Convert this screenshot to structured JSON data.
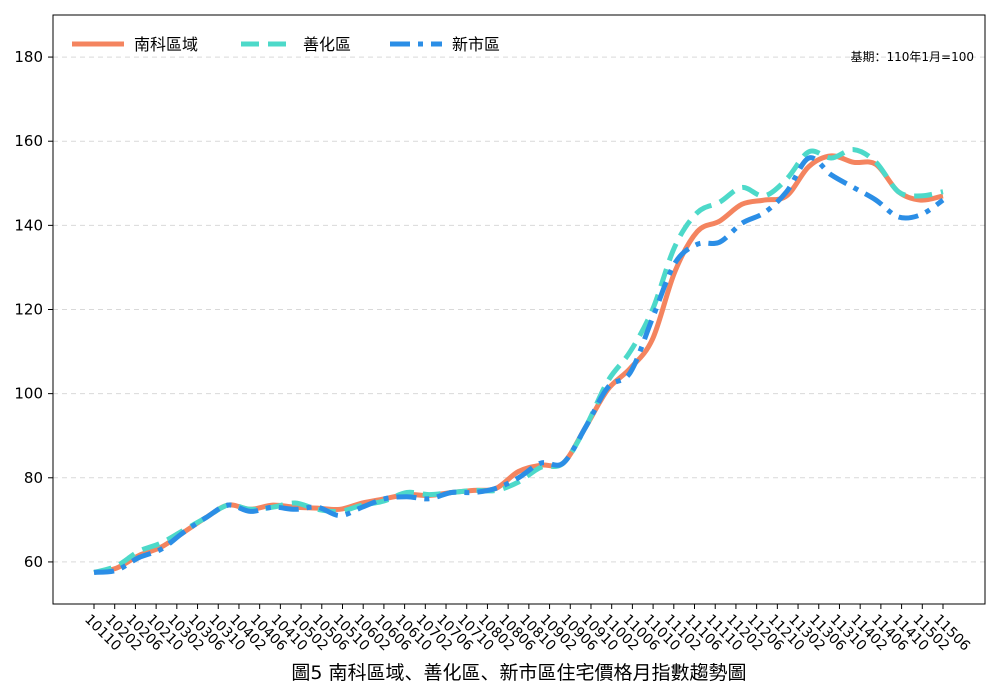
{
  "chart_data": {
    "type": "line",
    "title": "",
    "caption": "圖5 南科區域、善化區、新市區住宅價格月指數趨勢圖",
    "note": "基期：110年1月=100",
    "xlabel": "",
    "ylabel": "",
    "ylim": [
      50,
      190
    ],
    "yticks": [
      60,
      80,
      100,
      120,
      140,
      160,
      180
    ],
    "grid": "horizontal-dashed",
    "legend_position": "top-left",
    "x_tick_labels": [
      "10110",
      "10202",
      "10206",
      "10210",
      "10302",
      "10306",
      "10310",
      "10402",
      "10406",
      "10410",
      "10502",
      "10506",
      "10510",
      "10602",
      "10606",
      "10610",
      "10702",
      "10706",
      "10710",
      "10802",
      "10806",
      "10810",
      "10902",
      "10906",
      "10910",
      "11002",
      "11006",
      "11010",
      "11102",
      "11106",
      "11110",
      "11202",
      "11206",
      "11210",
      "11302",
      "11306",
      "11310",
      "11402",
      "11406",
      "11410",
      "11502",
      "11506"
    ],
    "series": [
      {
        "name": "南科區域",
        "color": "#F4845F",
        "dash": "solid",
        "values": [
          57.5,
          58.5,
          61.5,
          63.5,
          67,
          70.5,
          73.5,
          72.5,
          73.5,
          73,
          72.8,
          72.5,
          74,
          75,
          76,
          75.8,
          76.5,
          77,
          77.5,
          81.5,
          83,
          83.5,
          92,
          101,
          106,
          113,
          129,
          138.5,
          141,
          145,
          146,
          147,
          154,
          156.5,
          155,
          154.5,
          148,
          146,
          147
        ]
      },
      {
        "name": "善化區",
        "color": "#4DD9C9",
        "dash": "dashed",
        "values": [
          57.5,
          59,
          62.5,
          64.5,
          67.5,
          70.5,
          73.5,
          72.5,
          73,
          74,
          72.5,
          72,
          73.5,
          74.5,
          76.5,
          76,
          76.5,
          77,
          77,
          79,
          82.5,
          83.5,
          92,
          103,
          110,
          120,
          135,
          143,
          145.5,
          149,
          147,
          151,
          157.5,
          156,
          158,
          155,
          148,
          147,
          148
        ]
      },
      {
        "name": "新市區",
        "color": "#2B8EE6",
        "dash": "dashdot",
        "values": [
          57.5,
          58,
          61,
          63,
          67,
          70.5,
          73.5,
          72,
          73,
          72.5,
          73,
          71,
          73,
          75,
          75.5,
          75,
          76.5,
          76.5,
          77.5,
          80,
          83.5,
          83.5,
          92,
          101.5,
          105,
          118,
          131,
          135.5,
          136,
          140.5,
          143,
          148,
          156,
          152,
          149,
          146,
          142,
          142.5,
          146
        ]
      }
    ]
  }
}
